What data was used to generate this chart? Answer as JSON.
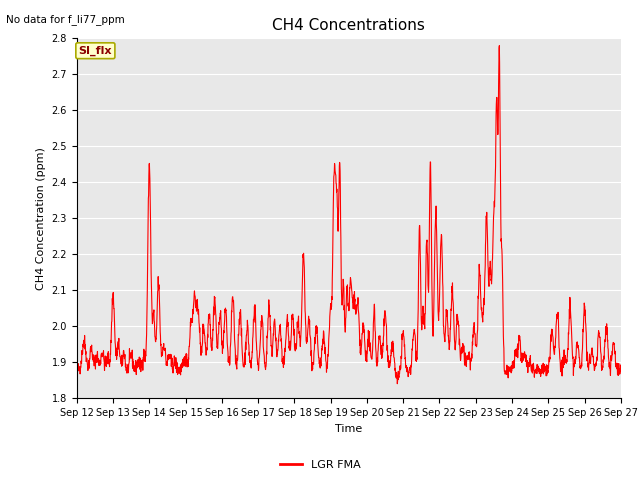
{
  "title": "CH4 Concentrations",
  "top_left_text": "No data for f_li77_ppm",
  "ylabel": "CH4 Concentration (ppm)",
  "xlabel": "Time",
  "ylim": [
    1.8,
    2.8
  ],
  "yticks": [
    1.8,
    1.9,
    2.0,
    2.1,
    2.2,
    2.3,
    2.4,
    2.5,
    2.6,
    2.7,
    2.8
  ],
  "xtick_labels": [
    "Sep 12",
    "Sep 13",
    "Sep 14",
    "Sep 15",
    "Sep 16",
    "Sep 17",
    "Sep 18",
    "Sep 19",
    "Sep 20",
    "Sep 21",
    "Sep 22",
    "Sep 23",
    "Sep 24",
    "Sep 25",
    "Sep 26",
    "Sep 27"
  ],
  "line_color": "#FF0000",
  "line_width": 0.8,
  "legend_label": "LGR FMA",
  "legend_line_color": "#FF0000",
  "annotation_text": "SI_flx",
  "annotation_box_color": "#FFFFCC",
  "annotation_box_edge_color": "#AAAA00",
  "annotation_text_color": "#8B0000",
  "bg_color": "#E8E8E8",
  "title_fontsize": 11,
  "axis_fontsize": 8,
  "tick_fontsize": 7,
  "legend_fontsize": 8
}
